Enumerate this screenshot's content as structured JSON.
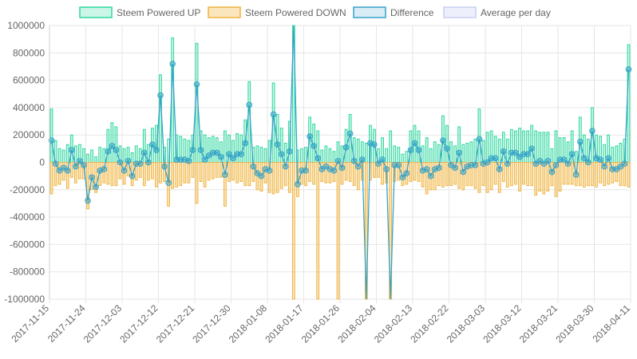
{
  "chart_data": {
    "type": "bar",
    "legend_position": "top",
    "grid": true,
    "ylim": [
      -1000000,
      1000000
    ],
    "y_ticks": [
      1000000,
      800000,
      600000,
      400000,
      200000,
      0,
      -200000,
      -400000,
      -600000,
      -800000,
      -1000000
    ],
    "x_tick_labels": [
      "2017-11-15",
      "2017-11-24",
      "2017-12-03",
      "2017-12-12",
      "2017-12-21",
      "2017-12-30",
      "2018-01-08",
      "2018-01-17",
      "2018-01-26",
      "2018-02-04",
      "2018-02-13",
      "2018-02-22",
      "2018-03-03",
      "2018-03-12",
      "2018-03-21",
      "2018-03-30",
      "2018-04-11"
    ],
    "series": [
      {
        "name": "Steem Powered UP",
        "kind": "bar",
        "color": "#2fd8a0",
        "fill": "rgba(47,216,160,0.25)",
        "values": [
          390000,
          160000,
          100000,
          90000,
          130000,
          200000,
          120000,
          130000,
          100000,
          60000,
          90000,
          40000,
          110000,
          100000,
          240000,
          290000,
          260000,
          120000,
          100000,
          110000,
          70000,
          120000,
          100000,
          240000,
          130000,
          250000,
          270000,
          640000,
          110000,
          170000,
          910000,
          200000,
          190000,
          170000,
          160000,
          200000,
          870000,
          230000,
          200000,
          180000,
          190000,
          180000,
          150000,
          230000,
          200000,
          160000,
          210000,
          200000,
          310000,
          590000,
          110000,
          120000,
          110000,
          100000,
          160000,
          580000,
          350000,
          250000,
          140000,
          300000,
          1000000,
          90000,
          100000,
          110000,
          330000,
          280000,
          230000,
          90000,
          120000,
          100000,
          80000,
          150000,
          120000,
          240000,
          350000,
          180000,
          170000,
          150000,
          140000,
          270000,
          240000,
          100000,
          180000,
          100000,
          230000,
          120000,
          110000,
          60000,
          80000,
          230000,
          270000,
          230000,
          120000,
          180000,
          100000,
          150000,
          130000,
          340000,
          270000,
          150000,
          120000,
          260000,
          130000,
          140000,
          150000,
          170000,
          390000,
          160000,
          220000,
          230000,
          190000,
          170000,
          220000,
          170000,
          240000,
          230000,
          250000,
          230000,
          230000,
          270000,
          230000,
          220000,
          220000,
          220000,
          100000,
          230000,
          180000,
          180000,
          150000,
          230000,
          80000,
          330000,
          200000,
          170000,
          400000,
          200000,
          190000,
          130000,
          200000,
          110000,
          120000,
          140000,
          170000,
          860000
        ]
      },
      {
        "name": "Steem Powered DOWN",
        "kind": "bar",
        "color": "#f0b440",
        "fill": "rgba(240,180,64,0.35)",
        "values": [
          -230000,
          -170000,
          -160000,
          -130000,
          -190000,
          -110000,
          -150000,
          -120000,
          -120000,
          -340000,
          -200000,
          -220000,
          -170000,
          -150000,
          -160000,
          -170000,
          -170000,
          -120000,
          -160000,
          -100000,
          -170000,
          -130000,
          -110000,
          -170000,
          -130000,
          -120000,
          -180000,
          -150000,
          -140000,
          -320000,
          -190000,
          -180000,
          -170000,
          -150000,
          -150000,
          -110000,
          -300000,
          -140000,
          -180000,
          -130000,
          -120000,
          -110000,
          -110000,
          -320000,
          -140000,
          -130000,
          -150000,
          -140000,
          -170000,
          -170000,
          -140000,
          -200000,
          -210000,
          -150000,
          -220000,
          -230000,
          -220000,
          -190000,
          -170000,
          -220000,
          -1000000,
          -250000,
          -160000,
          -170000,
          -140000,
          -160000,
          -1000000,
          -140000,
          -150000,
          -150000,
          -140000,
          -1000000,
          -160000,
          -130000,
          -140000,
          -170000,
          -200000,
          -130000,
          -1000000,
          -130000,
          -110000,
          -110000,
          -160000,
          -150000,
          -1000000,
          -140000,
          -130000,
          -170000,
          -160000,
          -140000,
          -130000,
          -140000,
          -180000,
          -230000,
          -200000,
          -200000,
          -170000,
          -180000,
          -170000,
          -170000,
          -160000,
          -190000,
          -200000,
          -170000,
          -170000,
          -190000,
          -220000,
          -170000,
          -220000,
          -200000,
          -160000,
          -220000,
          -140000,
          -180000,
          -170000,
          -160000,
          -210000,
          -160000,
          -170000,
          -170000,
          -240000,
          -210000,
          -230000,
          -210000,
          -170000,
          -250000,
          -210000,
          -160000,
          -160000,
          -160000,
          -170000,
          -170000,
          -180000,
          -170000,
          -170000,
          -180000,
          -150000,
          -170000,
          -160000,
          -150000,
          -140000,
          -170000,
          -170000,
          -180000
        ]
      },
      {
        "name": "Difference",
        "kind": "line",
        "color": "#36a2c8",
        "fill": "rgba(54,162,200,0.2)",
        "values": [
          160000,
          -10000,
          -60000,
          -40000,
          -60000,
          90000,
          -30000,
          10000,
          -20000,
          -280000,
          -110000,
          -180000,
          -60000,
          -50000,
          80000,
          120000,
          90000,
          0,
          -60000,
          10000,
          -100000,
          -10000,
          -10000,
          70000,
          0,
          130000,
          90000,
          490000,
          -30000,
          -150000,
          720000,
          20000,
          20000,
          20000,
          10000,
          90000,
          570000,
          90000,
          20000,
          50000,
          70000,
          70000,
          40000,
          -90000,
          60000,
          30000,
          60000,
          60000,
          140000,
          420000,
          -30000,
          -80000,
          -100000,
          -50000,
          -60000,
          350000,
          130000,
          60000,
          -30000,
          80000,
          1000000,
          -160000,
          -60000,
          -60000,
          190000,
          120000,
          30000,
          -50000,
          -30000,
          -50000,
          -60000,
          10000,
          -40000,
          110000,
          210000,
          10000,
          -30000,
          20000,
          -1000000,
          140000,
          130000,
          -10000,
          20000,
          -50000,
          -1000000,
          -20000,
          -20000,
          -110000,
          -80000,
          90000,
          140000,
          90000,
          -60000,
          -50000,
          -100000,
          -50000,
          -40000,
          160000,
          100000,
          -20000,
          -40000,
          70000,
          -70000,
          -30000,
          -20000,
          -20000,
          170000,
          -10000,
          0,
          30000,
          30000,
          -50000,
          80000,
          -10000,
          70000,
          70000,
          40000,
          60000,
          60000,
          100000,
          -10000,
          10000,
          -10000,
          10000,
          -70000,
          -20000,
          20000,
          20000,
          -10000,
          60000,
          -90000,
          150000,
          30000,
          0,
          230000,
          30000,
          20000,
          -30000,
          30000,
          -50000,
          -50000,
          -30000,
          -10000,
          680000
        ]
      },
      {
        "name": "Average per day",
        "kind": "line",
        "color": "#c8cff0",
        "fill": "rgba(110,130,220,0.12)",
        "values": []
      }
    ]
  }
}
